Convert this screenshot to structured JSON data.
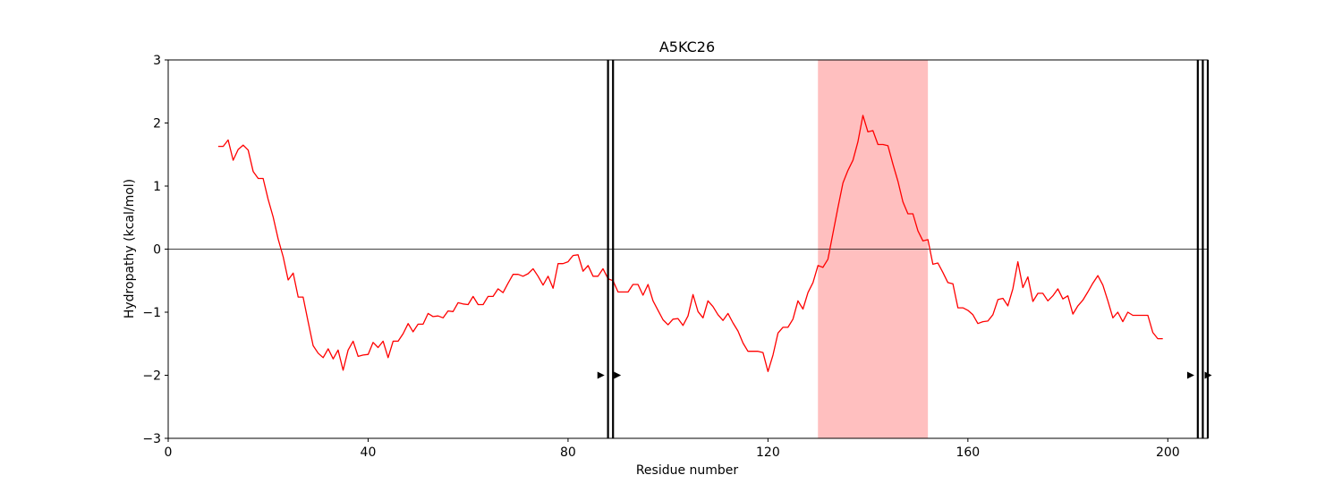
{
  "chart_data": {
    "type": "line",
    "title": "A5KC26",
    "xlabel": "Residue number",
    "ylabel": "Hydropathy (kcal/mol)",
    "xlim": [
      0,
      208
    ],
    "ylim": [
      -3,
      3
    ],
    "xticks": [
      0,
      40,
      80,
      120,
      160,
      200
    ],
    "yticks": [
      -3,
      -2,
      -1,
      0,
      1,
      2,
      3
    ],
    "colors": {
      "line": "#ff0000",
      "span": "#ffbfbf",
      "zero_line": "#000000",
      "marker": "#000000"
    },
    "grid": false,
    "zero_line": 0,
    "highlight_span": [
      130,
      152
    ],
    "vertical_lines": [
      88,
      89,
      206,
      207,
      208
    ],
    "markers": [
      {
        "x": 86.5,
        "y": -2,
        "shape": "triangle-right"
      },
      {
        "x": 89.8,
        "y": -2,
        "shape": "triangle-right"
      },
      {
        "x": 204.5,
        "y": -2,
        "shape": "triangle-right"
      },
      {
        "x": 208,
        "y": -2,
        "shape": "triangle-right"
      }
    ],
    "series": [
      {
        "x": [
          10,
          11,
          12,
          13,
          14,
          15,
          16,
          17,
          18,
          19,
          20,
          21,
          22,
          23,
          24,
          25,
          26,
          27,
          28,
          29,
          30,
          31,
          32,
          33,
          34,
          35,
          36,
          37,
          38,
          39,
          40,
          41,
          42,
          43,
          44,
          45,
          46,
          47,
          48,
          49,
          50,
          51,
          52,
          53,
          54,
          55,
          56,
          57,
          58,
          59,
          60,
          61,
          62,
          63,
          64,
          65,
          66,
          67,
          68,
          69,
          70,
          71,
          72,
          73,
          74,
          75,
          76,
          77,
          78,
          79,
          80,
          81,
          82,
          83,
          84,
          85,
          86,
          87,
          88,
          89,
          90,
          91,
          92,
          93,
          94,
          95,
          96,
          97,
          98,
          99,
          100,
          101,
          102,
          103,
          104,
          105,
          106,
          107,
          108,
          109,
          110,
          111,
          112,
          113,
          114,
          115,
          116,
          117,
          118,
          119,
          120,
          121,
          122,
          123,
          124,
          125,
          126,
          127,
          128,
          129,
          130,
          131,
          132,
          133,
          134,
          135,
          136,
          137,
          138,
          139,
          140,
          141,
          142,
          143,
          144,
          145,
          146,
          147,
          148,
          149,
          150,
          151,
          152,
          153,
          154,
          155,
          156,
          157,
          158,
          159,
          160,
          161,
          162,
          163,
          164,
          165,
          166,
          167,
          168,
          169,
          170,
          171,
          172,
          173,
          174,
          175,
          176,
          177,
          178,
          179,
          180,
          181,
          182,
          183,
          184,
          185,
          186,
          187,
          188,
          189,
          190,
          191,
          192,
          193,
          194,
          195,
          196,
          197,
          198,
          199
        ],
        "values": [
          1.63,
          1.63,
          1.73,
          1.41,
          1.58,
          1.65,
          1.57,
          1.23,
          1.12,
          1.12,
          0.79,
          0.51,
          0.16,
          -0.12,
          -0.49,
          -0.38,
          -0.76,
          -0.76,
          -1.15,
          -1.53,
          -1.65,
          -1.72,
          -1.58,
          -1.74,
          -1.6,
          -1.92,
          -1.6,
          -1.46,
          -1.7,
          -1.68,
          -1.67,
          -1.48,
          -1.56,
          -1.46,
          -1.72,
          -1.46,
          -1.46,
          -1.34,
          -1.18,
          -1.31,
          -1.19,
          -1.19,
          -1.02,
          -1.07,
          -1.06,
          -1.09,
          -0.98,
          -0.99,
          -0.85,
          -0.87,
          -0.88,
          -0.75,
          -0.88,
          -0.88,
          -0.75,
          -0.75,
          -0.63,
          -0.69,
          -0.54,
          -0.4,
          -0.4,
          -0.43,
          -0.39,
          -0.31,
          -0.43,
          -0.57,
          -0.43,
          -0.62,
          -0.23,
          -0.23,
          -0.2,
          -0.1,
          -0.09,
          -0.35,
          -0.26,
          -0.43,
          -0.43,
          -0.31,
          -0.47,
          -0.5,
          -0.68,
          -0.68,
          -0.68,
          -0.56,
          -0.56,
          -0.73,
          -0.56,
          -0.82,
          -0.97,
          -1.12,
          -1.2,
          -1.11,
          -1.1,
          -1.21,
          -1.06,
          -0.72,
          -0.99,
          -1.09,
          -0.82,
          -0.91,
          -1.04,
          -1.13,
          -1.02,
          -1.17,
          -1.3,
          -1.49,
          -1.62,
          -1.62,
          -1.62,
          -1.64,
          -1.94,
          -1.68,
          -1.33,
          -1.24,
          -1.24,
          -1.11,
          -0.82,
          -0.95,
          -0.69,
          -0.53,
          -0.26,
          -0.29,
          -0.16,
          0.25,
          0.66,
          1.05,
          1.25,
          1.41,
          1.7,
          2.12,
          1.86,
          1.88,
          1.66,
          1.66,
          1.64,
          1.35,
          1.08,
          0.75,
          0.56,
          0.56,
          0.29,
          0.13,
          0.15,
          -0.24,
          -0.22,
          -0.37,
          -0.53,
          -0.55,
          -0.93,
          -0.93,
          -0.97,
          -1.04,
          -1.18,
          -1.15,
          -1.14,
          -1.04,
          -0.8,
          -0.78,
          -0.9,
          -0.63,
          -0.2,
          -0.61,
          -0.44,
          -0.83,
          -0.7,
          -0.7,
          -0.82,
          -0.74,
          -0.63,
          -0.79,
          -0.74,
          -1.03,
          -0.9,
          -0.81,
          -0.68,
          -0.54,
          -0.42,
          -0.57,
          -0.82,
          -1.09,
          -1.0,
          -1.15,
          -1.0,
          -1.05,
          -1.05,
          -1.05,
          -1.05,
          -1.32,
          -1.42,
          -1.42
        ]
      }
    ]
  }
}
